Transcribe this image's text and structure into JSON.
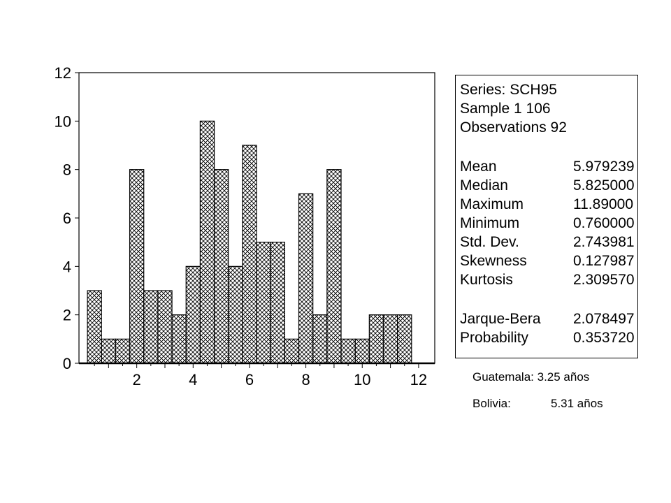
{
  "chart_data": {
    "type": "bar",
    "xlim": [
      0,
      12.3
    ],
    "ylim": [
      0,
      12
    ],
    "x_ticks": [
      2,
      4,
      6,
      8,
      10,
      12
    ],
    "y_ticks": [
      0,
      2,
      4,
      6,
      8,
      10,
      12
    ],
    "bin_width": 0.5,
    "bin_start": 0.25,
    "values": [
      3,
      1,
      1,
      8,
      3,
      3,
      2,
      4,
      10,
      8,
      4,
      9,
      5,
      5,
      1,
      7,
      2,
      8,
      1,
      1,
      2,
      2,
      2
    ],
    "grid": false,
    "fill_pattern": "crosshatch"
  },
  "stats": {
    "series": "Series: SCH95",
    "sample": "Sample 1 106",
    "observations": "Observations 92",
    "rows": [
      {
        "label": "Mean",
        "value": "5.979239"
      },
      {
        "label": "Median",
        "value": "5.825000"
      },
      {
        "label": "Maximum",
        "value": "11.89000"
      },
      {
        "label": "Minimum",
        "value": "0.760000"
      },
      {
        "label": "Std. Dev.",
        "value": "2.743981"
      },
      {
        "label": "Skewness",
        "value": "0.127987"
      },
      {
        "label": "Kurtosis",
        "value": "2.309570"
      }
    ],
    "jb_rows": [
      {
        "label": "Jarque-Bera",
        "value": "2.078497"
      },
      {
        "label": "Probability",
        "value": "0.353720"
      }
    ]
  },
  "notes": {
    "guatemala_label": "Guatemala:",
    "guatemala_value": "3.25 años",
    "bolivia_label": "Bolivia:",
    "bolivia_value": "5.31 años"
  }
}
